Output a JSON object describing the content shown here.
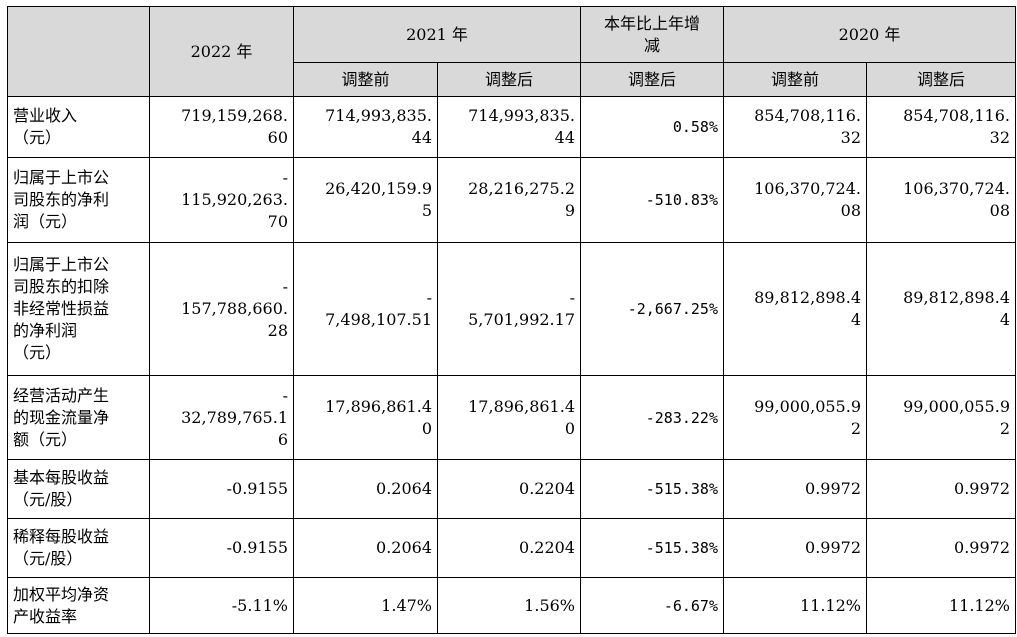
{
  "header": {
    "year_2022": "2022 年",
    "year_2021": "2021 年",
    "change": "本年比上年增\n减",
    "year_2020": "2020 年",
    "before_adj": "调整前",
    "after_adj": "调整后"
  },
  "rows": [
    {
      "label": "营业收入\n（元）",
      "v2022": "719,159,268.\n60",
      "v2021_before": "714,993,835.\n44",
      "v2021_after": "714,993,835.\n44",
      "change": "0.58%",
      "v2020_before": "854,708,116.\n32",
      "v2020_after": "854,708,116.\n32"
    },
    {
      "label": "归属于上市公\n司股东的净利\n润（元）",
      "v2022": "-\n115,920,263.\n70",
      "v2021_before": "26,420,159.9\n5",
      "v2021_after": "28,216,275.2\n9",
      "change": "-510.83%",
      "v2020_before": "106,370,724.\n08",
      "v2020_after": "106,370,724.\n08"
    },
    {
      "label": "归属于上市公\n司股东的扣除\n非经常性损益\n的净利润\n（元）",
      "v2022": "-\n157,788,660.\n28",
      "v2021_before": "-\n7,498,107.51",
      "v2021_after": "-\n5,701,992.17",
      "change": "-2,667.25%",
      "v2020_before": "89,812,898.4\n4",
      "v2020_after": "89,812,898.4\n4"
    },
    {
      "label": "经营活动产生\n的现金流量净\n额（元）",
      "v2022": "-\n32,789,765.1\n6",
      "v2021_before": "17,896,861.4\n0",
      "v2021_after": "17,896,861.4\n0",
      "change": "-283.22%",
      "v2020_before": "99,000,055.9\n2",
      "v2020_after": "99,000,055.9\n2"
    },
    {
      "label": "基本每股收益\n（元/股）",
      "v2022": "-0.9155",
      "v2021_before": "0.2064",
      "v2021_after": "0.2204",
      "change": "-515.38%",
      "v2020_before": "0.9972",
      "v2020_after": "0.9972"
    },
    {
      "label": "稀释每股收益\n（元/股）",
      "v2022": "-0.9155",
      "v2021_before": "0.2064",
      "v2021_after": "0.2204",
      "change": "-515.38%",
      "v2020_before": "0.9972",
      "v2020_after": "0.9972"
    },
    {
      "label": "加权平均净资\n产收益率",
      "v2022": "-5.11%",
      "v2021_before": "1.47%",
      "v2021_after": "1.56%",
      "change": "-6.67%",
      "v2020_before": "11.12%",
      "v2020_after": "11.12%"
    }
  ]
}
